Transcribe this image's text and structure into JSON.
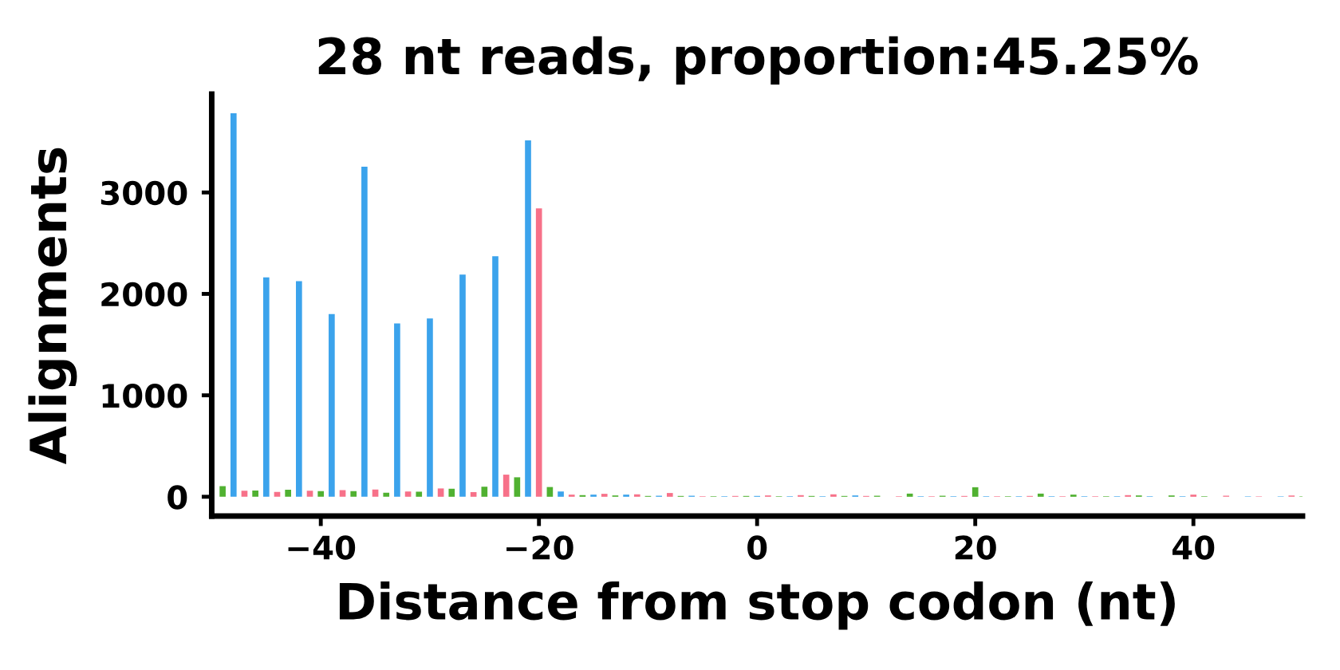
{
  "chart_data": {
    "type": "bar",
    "title": "28 nt reads, proportion:45.25%",
    "xlabel": "Distance from stop codon (nt)",
    "ylabel": "Alignments",
    "series": [
      {
        "color": "#50b131",
        "x": [
          -49,
          -46,
          -43,
          -40,
          -37,
          -34,
          -31,
          -28,
          -25,
          -22,
          -19,
          -16,
          -13,
          -10,
          -7,
          -4,
          -1,
          2,
          5,
          8,
          11,
          14,
          17,
          20,
          23,
          26,
          29,
          32,
          35,
          38,
          41,
          44,
          47,
          50
        ],
        "values": [
          105,
          62,
          69,
          55,
          55,
          39,
          50,
          79,
          99,
          192,
          96,
          16,
          13,
          8,
          8,
          5,
          8,
          5,
          8,
          8,
          10,
          31,
          10,
          94,
          5,
          31,
          21,
          5,
          13,
          13,
          5,
          null,
          null,
          5
        ]
      },
      {
        "color": "#3ba3ec",
        "x": [
          -48,
          -45,
          -42,
          -39,
          -36,
          -33,
          -30,
          -27,
          -24,
          -21,
          -18,
          -15,
          -12,
          -9,
          -6,
          -3,
          0,
          3,
          6,
          9,
          12,
          15,
          18,
          21,
          24,
          27,
          30,
          33,
          36,
          39,
          42,
          45,
          48
        ],
        "values": [
          3780,
          2163,
          2126,
          1801,
          3253,
          1708,
          1758,
          2191,
          2371,
          3514,
          52,
          21,
          21,
          10,
          10,
          5,
          8,
          5,
          5,
          13,
          null,
          5,
          5,
          5,
          5,
          5,
          5,
          5,
          5,
          5,
          null,
          5,
          5
        ]
      },
      {
        "color": "#f77189",
        "x": [
          -47,
          -44,
          -41,
          -38,
          -35,
          -32,
          -29,
          -26,
          -23,
          -20,
          -17,
          -14,
          -11,
          -8,
          -5,
          -2,
          1,
          4,
          7,
          10,
          13,
          16,
          19,
          22,
          25,
          28,
          31,
          34,
          37,
          40,
          43,
          46,
          49
        ],
        "values": [
          60,
          48,
          60,
          66,
          72,
          52,
          82,
          46,
          218,
          2843,
          21,
          29,
          24,
          37,
          5,
          8,
          13,
          16,
          24,
          8,
          5,
          5,
          8,
          5,
          8,
          5,
          5,
          16,
          null,
          21,
          10,
          5,
          13
        ]
      }
    ],
    "xlim": [
      -50,
      50
    ],
    "ylim": [
      -190,
      3970
    ],
    "xticks": [
      {
        "value": -40,
        "label": "−40"
      },
      {
        "value": -20,
        "label": "−20"
      },
      0,
      20,
      40
    ],
    "yticks": [
      0,
      1000,
      2000,
      3000
    ]
  }
}
